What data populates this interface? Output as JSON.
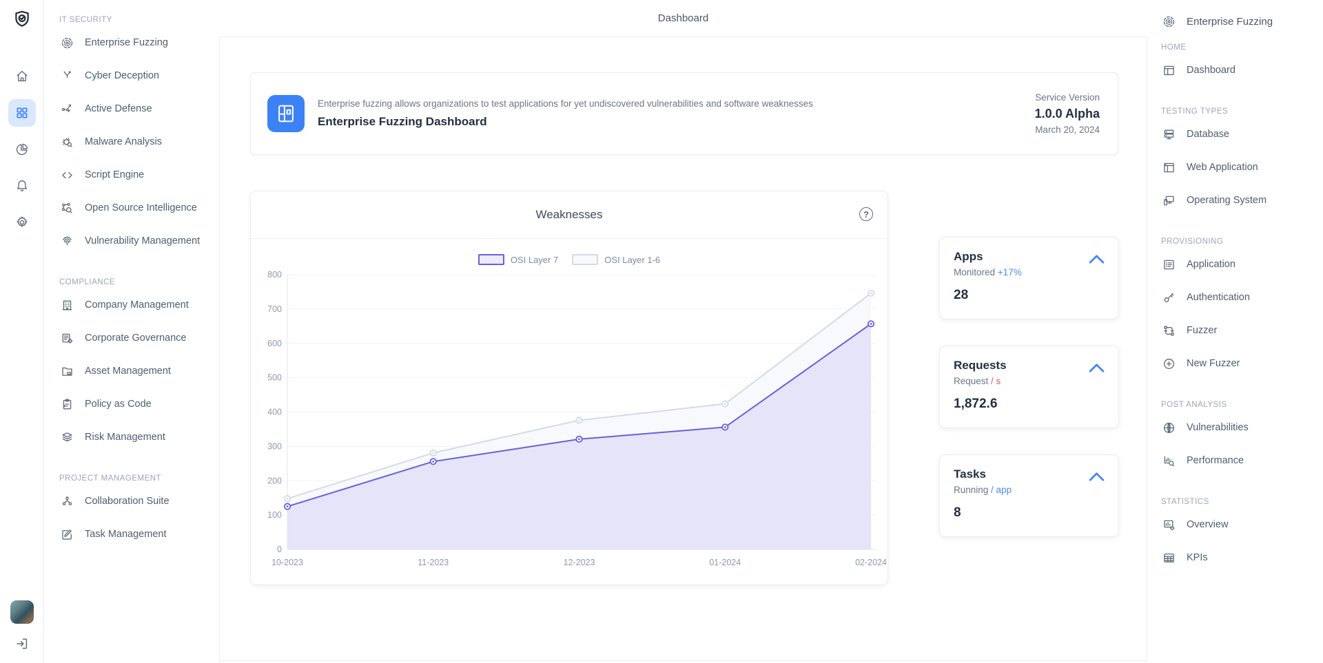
{
  "page": {
    "title": "Dashboard"
  },
  "rail": {
    "items": [
      {
        "icon": "home",
        "active": false
      },
      {
        "icon": "grid",
        "active": true
      },
      {
        "icon": "pie",
        "active": false
      },
      {
        "icon": "bell",
        "active": false
      },
      {
        "icon": "gear",
        "active": false
      }
    ]
  },
  "left_sidebar": {
    "sections": [
      {
        "label": "IT SECURITY",
        "items": [
          {
            "label": "Enterprise Fuzzing",
            "icon": "target"
          },
          {
            "label": "Cyber Deception",
            "icon": "fork"
          },
          {
            "label": "Active Defense",
            "icon": "route"
          },
          {
            "label": "Malware Analysis",
            "icon": "bug"
          },
          {
            "label": "Script Engine",
            "icon": "code"
          },
          {
            "label": "Open Source Intelligence",
            "icon": "netsearch"
          },
          {
            "label": "Vulnerability Management",
            "icon": "fingerprint"
          }
        ]
      },
      {
        "label": "COMPLIANCE",
        "items": [
          {
            "label": "Company Management",
            "icon": "building"
          },
          {
            "label": "Corporate Governance",
            "icon": "listgear"
          },
          {
            "label": "Asset Management",
            "icon": "folder"
          },
          {
            "label": "Policy as Code",
            "icon": "clipboard"
          },
          {
            "label": "Risk Management",
            "icon": "layers"
          }
        ]
      },
      {
        "label": "PROJECT MANAGEMENT",
        "items": [
          {
            "label": "Collaboration Suite",
            "icon": "org"
          },
          {
            "label": "Task Management",
            "icon": "edit"
          }
        ]
      }
    ]
  },
  "header_card": {
    "description": "Enterprise fuzzing allows organizations to test applications for yet undiscovered vulnerabilities and software weaknesses",
    "title": "Enterprise Fuzzing Dashboard",
    "service_version_label": "Service Version",
    "version": "1.0.0 Alpha",
    "date": "March 20, 2024"
  },
  "chart_card": {
    "title": "Weaknesses",
    "help_label": "?"
  },
  "chart_data": {
    "type": "area",
    "title": "Weaknesses",
    "x": [
      "10-2023",
      "11-2023",
      "12-2023",
      "01-2024",
      "02-2024"
    ],
    "ylim": [
      0,
      800
    ],
    "ytick_step": 100,
    "grid": true,
    "legend_position": "top",
    "series": [
      {
        "name": "OSI Layer 7",
        "values": [
          125,
          256,
          321,
          356,
          657
        ],
        "color": "#6461de",
        "fill": "#e6e4f8",
        "swatch_fill": "#eceafc"
      },
      {
        "name": "OSI Layer 1-6",
        "values": [
          148,
          281,
          376,
          424,
          746
        ],
        "color": "#d3dbe6",
        "fill": "#f7f9fc",
        "swatch_fill": "#f7f9fc"
      }
    ]
  },
  "stat_cards": [
    {
      "id": "apps",
      "title": "Apps",
      "subtitle": "Monitored",
      "accent": "+17%",
      "accent_color": "#4b8bf5",
      "value": "28"
    },
    {
      "id": "requests",
      "title": "Requests",
      "subtitle": "Request",
      "accent": "/ s",
      "accent_color": "#e25c5c",
      "value": "1,872.6"
    },
    {
      "id": "tasks",
      "title": "Tasks",
      "subtitle": "Running",
      "accent": "/ app",
      "accent_color": "#4b8bf5",
      "value": "8"
    }
  ],
  "right_sidebar": {
    "brand": "Enterprise Fuzzing",
    "brand_icon": "target",
    "sections": [
      {
        "label": "HOME",
        "items": [
          {
            "label": "Dashboard",
            "icon": "layout"
          }
        ]
      },
      {
        "label": "TESTING TYPES",
        "items": [
          {
            "label": "Database",
            "icon": "database"
          },
          {
            "label": "Web Application",
            "icon": "window"
          },
          {
            "label": "Operating System",
            "icon": "devices"
          }
        ]
      },
      {
        "label": "PROVISIONING",
        "items": [
          {
            "label": "Application",
            "icon": "listbox"
          },
          {
            "label": "Authentication",
            "icon": "key"
          },
          {
            "label": "Fuzzer",
            "icon": "loop"
          },
          {
            "label": "New Fuzzer",
            "icon": "pluscircle"
          }
        ]
      },
      {
        "label": "POST ANALYSIS",
        "items": [
          {
            "label": "Vulnerabilities",
            "icon": "globe"
          },
          {
            "label": "Performance",
            "icon": "chartsearch"
          }
        ]
      },
      {
        "label": "STATISTICS",
        "items": [
          {
            "label": "Overview",
            "icon": "chartbox"
          },
          {
            "label": "KPIs",
            "icon": "table"
          }
        ]
      }
    ]
  }
}
